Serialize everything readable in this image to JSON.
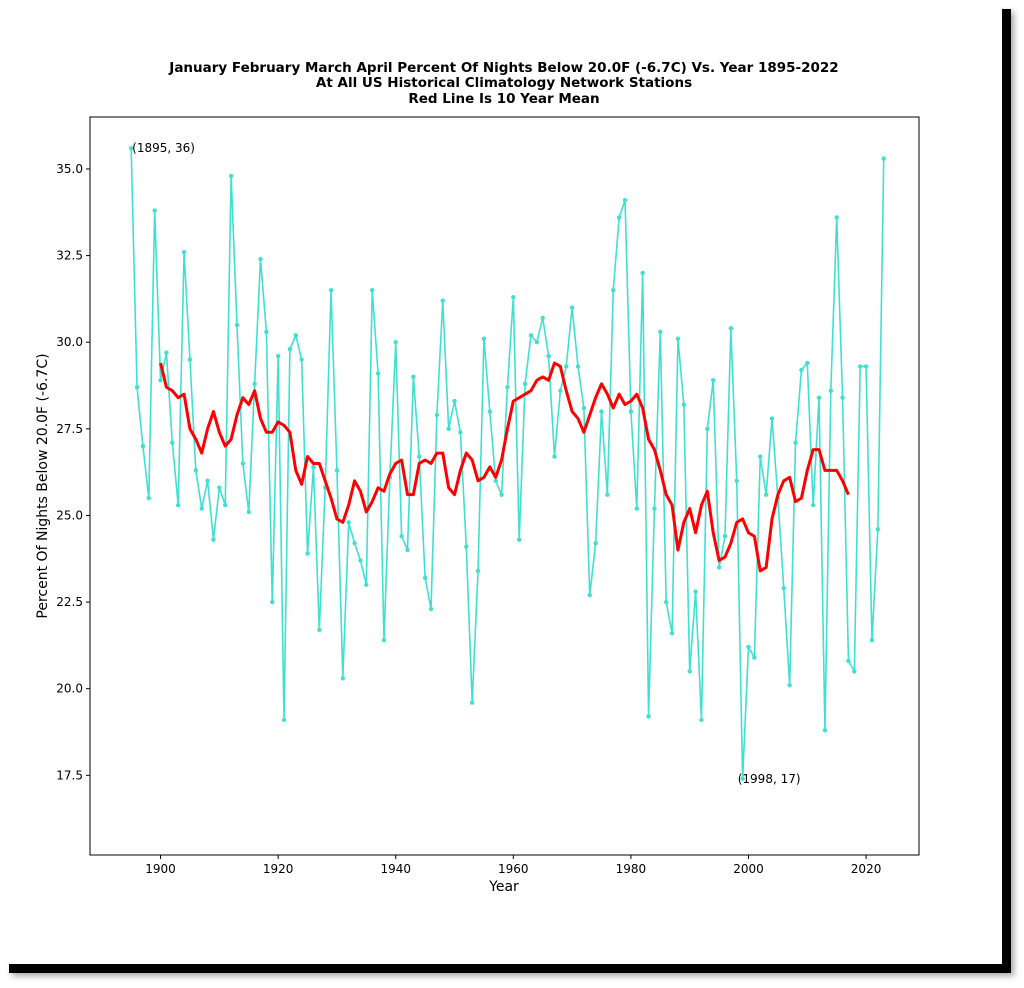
{
  "chart_data": {
    "type": "line",
    "title_lines": [
      "January February March April Percent Of Nights Below 20.0F (-6.7C) Vs. Year 1895-2022",
      "At All US Historical Climatology Network Stations",
      "Red Line Is 10 Year Mean"
    ],
    "xlabel": "Year",
    "ylabel": "Percent Of Nights Below 20.0F (-6.7C)",
    "xlim": [
      1888,
      2029
    ],
    "ylim": [
      15.2,
      36.5
    ],
    "xticks": [
      1900,
      1920,
      1940,
      1960,
      1980,
      2000,
      2020
    ],
    "yticks": [
      17.5,
      20.0,
      22.5,
      25.0,
      27.5,
      30.0,
      32.5,
      35.0
    ],
    "grid": false,
    "colors": {
      "annual": "#40e0d0",
      "mean": "#ff0000"
    },
    "annotations": [
      {
        "text": "(1895, 36)",
        "x": 1895,
        "y": 35.6
      },
      {
        "text": "(1998, 17)",
        "x": 1998,
        "y": 17.4
      }
    ],
    "series": [
      {
        "start_year": 1895,
        "values": [
          35.6,
          28.7,
          27.0,
          25.5,
          33.8,
          28.9,
          29.7,
          27.1,
          25.3,
          32.6,
          29.5,
          26.3,
          25.2,
          26.0,
          24.3,
          25.8,
          25.3,
          34.8,
          30.5,
          26.5,
          25.1,
          28.8,
          32.4,
          30.3,
          22.5,
          29.6,
          19.1,
          29.8,
          30.2,
          29.5,
          23.9,
          26.4,
          21.7,
          25.8,
          31.5,
          26.3,
          20.3,
          24.8,
          24.2,
          23.7,
          23.0,
          31.5,
          29.1,
          21.4,
          26.1,
          30.0,
          24.4,
          24.0,
          29.0,
          26.7,
          23.2,
          22.3,
          27.9,
          31.2,
          27.5,
          28.3,
          27.4,
          24.1,
          19.6,
          23.4,
          30.1,
          28.0,
          26.0,
          25.6,
          28.7,
          31.3,
          24.3,
          28.8,
          30.2,
          30.0,
          30.7,
          29.6,
          26.7,
          28.6,
          29.3,
          31.0,
          29.3,
          28.1,
          22.7,
          24.2,
          28.0,
          25.6,
          31.5,
          33.6,
          34.1,
          28.0,
          25.2,
          32.0,
          19.2,
          25.2,
          30.3,
          22.5,
          21.6,
          30.1,
          28.2,
          20.5,
          22.8,
          19.1,
          27.5,
          28.9,
          23.5,
          24.4,
          30.4,
          26.0,
          17.4,
          21.2,
          20.9,
          26.7,
          25.6,
          27.8,
          25.5,
          22.9,
          20.1,
          27.1,
          29.2,
          29.4,
          25.3,
          28.4,
          18.8,
          28.6,
          33.6,
          28.4,
          20.8,
          20.5,
          29.3,
          29.3,
          21.4,
          24.6,
          35.3
        ]
      },
      {
        "name": "Red Line Is 10 Year Mean",
        "start_year": 1900,
        "values": [
          29.4,
          28.7,
          28.6,
          28.4,
          28.5,
          27.5,
          27.2,
          26.8,
          27.5,
          28.0,
          27.4,
          27.0,
          27.2,
          27.9,
          28.4,
          28.2,
          28.6,
          27.8,
          27.4,
          27.4,
          27.7,
          27.6,
          27.4,
          26.3,
          25.9,
          26.7,
          26.5,
          26.5,
          26.0,
          25.5,
          24.9,
          24.8,
          25.3,
          26.0,
          25.7,
          25.1,
          25.4,
          25.8,
          25.7,
          26.2,
          26.5,
          26.6,
          25.6,
          25.6,
          26.5,
          26.6,
          26.5,
          26.8,
          26.8,
          25.8,
          25.6,
          26.3,
          26.8,
          26.6,
          26.0,
          26.1,
          26.4,
          26.1,
          26.6,
          27.5,
          28.3,
          28.4,
          28.5,
          28.6,
          28.9,
          29.0,
          28.9,
          29.4,
          29.3,
          28.6,
          28.0,
          27.8,
          27.4,
          27.9,
          28.4,
          28.8,
          28.5,
          28.1,
          28.5,
          28.2,
          28.3,
          28.5,
          28.1,
          27.2,
          26.9,
          26.3,
          25.6,
          25.3,
          24.0,
          24.8,
          25.2,
          24.5,
          25.3,
          25.7,
          24.5,
          23.7,
          23.8,
          24.2,
          24.8,
          24.9,
          24.5,
          24.4,
          23.4,
          23.5,
          24.9,
          25.6,
          26.0,
          26.1,
          25.4,
          25.5,
          26.3,
          26.9,
          26.9,
          26.3,
          26.3,
          26.3,
          26.0,
          25.6
        ]
      }
    ]
  }
}
